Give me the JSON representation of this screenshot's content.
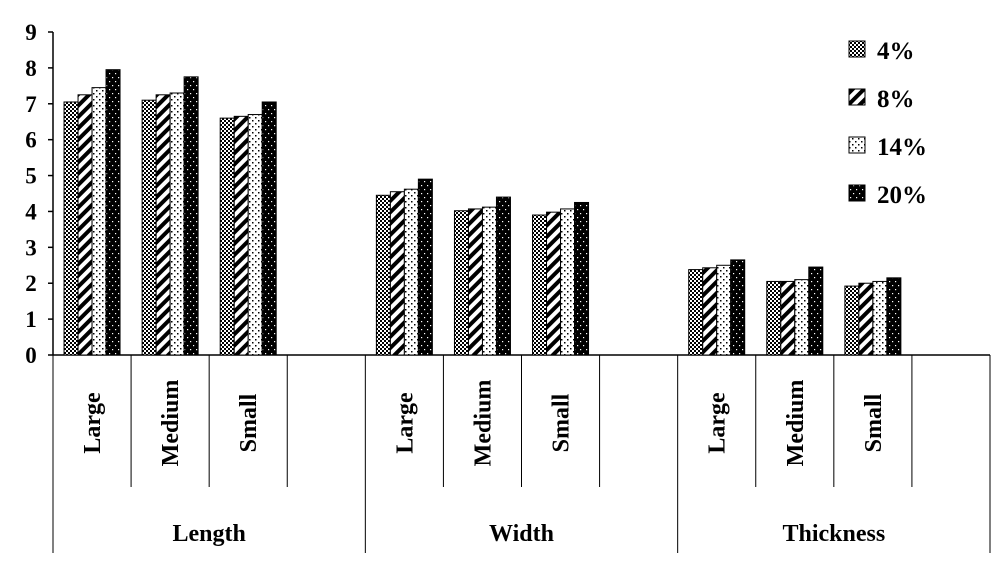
{
  "chart_data": {
    "type": "bar",
    "title": "",
    "xlabel": "",
    "ylabel": "",
    "ylim": [
      0,
      9
    ],
    "yticks": [
      "0",
      "1",
      "2",
      "3",
      "4",
      "5",
      "6",
      "7",
      "8",
      "9"
    ],
    "grid": false,
    "legend_position": "top-right",
    "groups": [
      {
        "label": "Length",
        "categories": [
          "Large",
          "Medium",
          "Small"
        ]
      },
      {
        "label": "Width",
        "categories": [
          "Large",
          "Medium",
          "Small"
        ]
      },
      {
        "label": "Thickness",
        "categories": [
          "Large",
          "Medium",
          "Small"
        ]
      }
    ],
    "series": [
      {
        "name": "4%",
        "pattern": "checker",
        "values": [
          7.05,
          7.1,
          6.6,
          4.45,
          4.02,
          3.9,
          2.38,
          2.05,
          1.92
        ]
      },
      {
        "name": "8%",
        "pattern": "diagonal",
        "values": [
          7.25,
          7.25,
          6.65,
          4.55,
          4.07,
          3.98,
          2.43,
          2.05,
          2.0
        ]
      },
      {
        "name": "14%",
        "pattern": "dotted",
        "values": [
          7.45,
          7.3,
          6.7,
          4.62,
          4.12,
          4.07,
          2.5,
          2.1,
          2.05
        ]
      },
      {
        "name": "20%",
        "pattern": "solid",
        "values": [
          7.95,
          7.75,
          7.05,
          4.9,
          4.4,
          4.25,
          2.65,
          2.45,
          2.15
        ]
      }
    ],
    "colors": {
      "ink": "#000000",
      "background": "#ffffff"
    }
  }
}
